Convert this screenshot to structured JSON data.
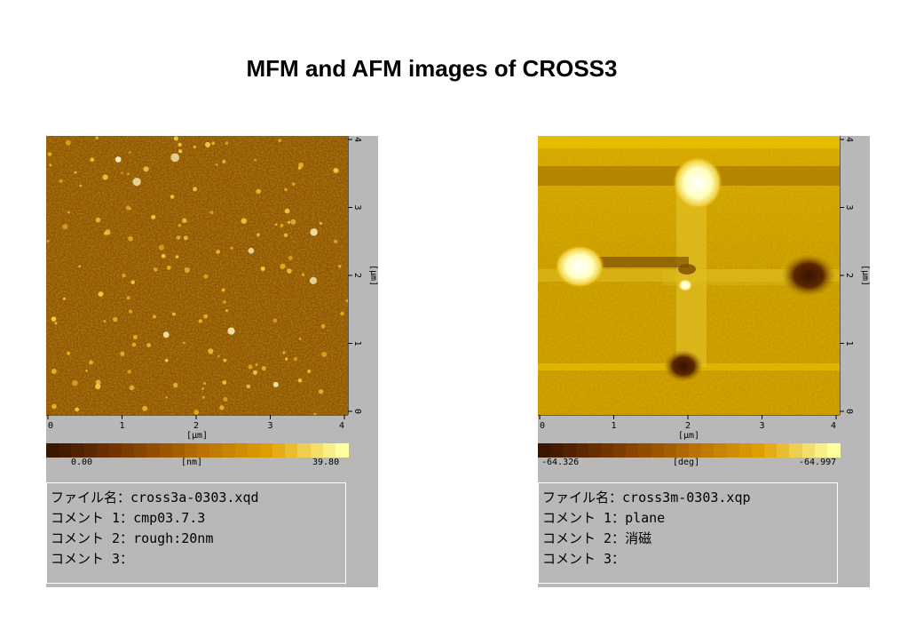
{
  "title": "MFM and AFM images of CROSS3",
  "panels": [
    {
      "x_ticks": [
        "0",
        "1",
        "2",
        "3",
        "4"
      ],
      "y_ticks": [
        "0",
        "1",
        "2",
        "3",
        "4"
      ],
      "axis_unit": "[μm]",
      "colorbar": {
        "min": "0.00",
        "unit": "[nm]",
        "max": "39.80",
        "colors": [
          "#3a1500",
          "#7a3a00",
          "#b66c00",
          "#e0a000",
          "#ffffa0"
        ]
      },
      "info": {
        "file_label": "ファイル名：",
        "file": "cross3a-0303.xqd",
        "c1_label": "コメント 1：",
        "c1": "cmp03.7.3",
        "c2_label": "コメント 2：",
        "c2": "rough:20nm",
        "c3_label": "コメント 3：",
        "c3": ""
      }
    },
    {
      "x_ticks": [
        "0",
        "1",
        "2",
        "3",
        "4"
      ],
      "y_ticks": [
        "0",
        "1",
        "2",
        "3",
        "4"
      ],
      "axis_unit": "[μm]",
      "colorbar": {
        "min": "-64.326",
        "unit": "[deg]",
        "max": "-64.997",
        "colors": [
          "#3a1500",
          "#7a3a00",
          "#b66c00",
          "#e0a000",
          "#ffffa0"
        ]
      },
      "info": {
        "file_label": "ファイル名：",
        "file": "cross3m-0303.xqp",
        "c1_label": "コメント 1：",
        "c1": "plane",
        "c2_label": "コメント 2：",
        "c2": "消磁",
        "c3_label": "コメント 3：",
        "c3": ""
      }
    }
  ]
}
